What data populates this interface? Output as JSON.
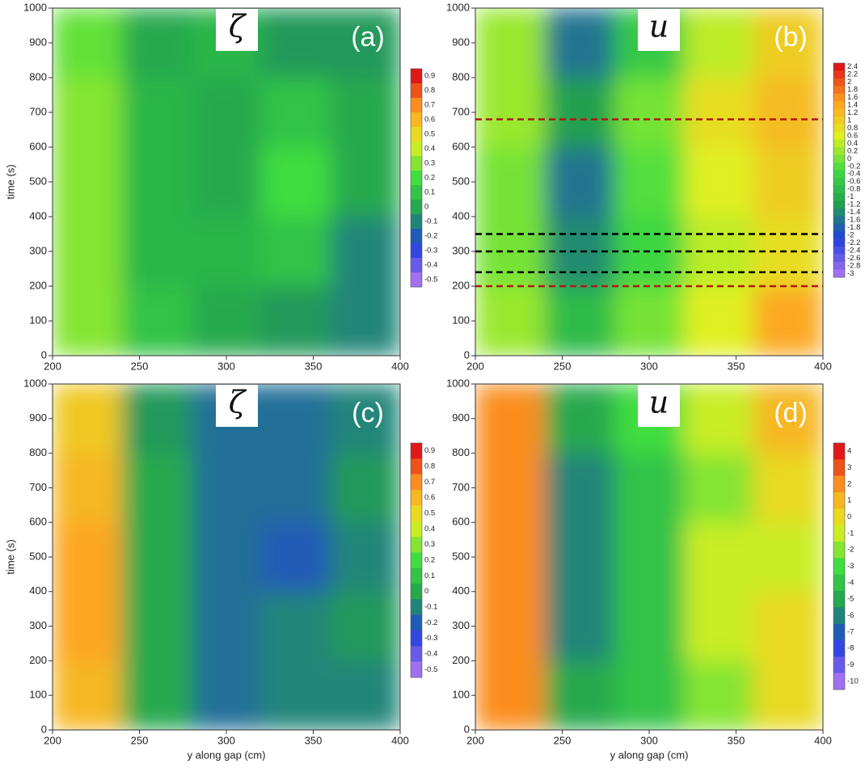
{
  "chart_data": [
    {
      "type": "heatmap",
      "symbol": "ζ",
      "label": "(a)",
      "y_label": "time (s)",
      "x": [
        200,
        240,
        280,
        320,
        360,
        400
      ],
      "y": [
        0,
        200,
        400,
        600,
        800,
        1000
      ],
      "values": [
        [
          0.3,
          0.1,
          0,
          -0.05,
          -0.1
        ],
        [
          0.3,
          0.05,
          0.05,
          0.1,
          -0.1
        ],
        [
          0.3,
          0.05,
          0,
          0.2,
          0
        ],
        [
          0.3,
          0.05,
          0,
          0.1,
          0
        ],
        [
          0.25,
          0,
          0.05,
          -0.05,
          -0.05
        ]
      ],
      "xlim": [
        200,
        400
      ],
      "xticks": [
        200,
        250,
        300,
        350,
        400
      ],
      "ylim": [
        0,
        1000
      ],
      "yticks": [
        0,
        100,
        200,
        300,
        400,
        500,
        600,
        700,
        800,
        900,
        1000
      ],
      "colorbar": [
        0.9,
        0.8,
        0.7,
        0.6,
        0.5,
        0.4,
        0.3,
        0.2,
        0.1,
        0,
        -0.1,
        -0.2,
        -0.3,
        -0.4,
        -0.5
      ],
      "colormap": [
        "#a070f0",
        "#2040e0",
        "#20a050",
        "#40dd40",
        "#e0f020",
        "#ffa020",
        "#e01818"
      ]
    },
    {
      "type": "heatmap",
      "symbol": "u",
      "label": "(b)",
      "x": [
        200,
        240,
        280,
        320,
        360,
        400
      ],
      "y": [
        0,
        200,
        400,
        600,
        800,
        1000
      ],
      "values": [
        [
          0.2,
          -0.8,
          0,
          0.6,
          1.4
        ],
        [
          0,
          -1.4,
          -0.4,
          0.4,
          0.8
        ],
        [
          0,
          -1.6,
          -0.2,
          0.6,
          1
        ],
        [
          0.2,
          -1.2,
          0,
          0.8,
          1.2
        ],
        [
          0.2,
          -1.6,
          -0.6,
          0.4,
          1
        ]
      ],
      "xlim": [
        200,
        400
      ],
      "xticks": [
        200,
        250,
        300,
        350,
        400
      ],
      "ylim": [
        0,
        1000
      ],
      "yticks": [
        0,
        100,
        200,
        300,
        400,
        500,
        600,
        700,
        800,
        900,
        1000
      ],
      "colorbar": [
        2.4,
        2.2,
        2,
        1.8,
        1.6,
        1.4,
        1.2,
        1,
        0.8,
        0.6,
        0.4,
        0.2,
        0,
        -0.2,
        -0.4,
        -0.6,
        -0.8,
        -1,
        -1.2,
        -1.4,
        -1.6,
        -1.8,
        -2,
        -2.2,
        -2.4,
        -2.6,
        -2.8,
        -3
      ],
      "colormap": [
        "#a070f0",
        "#2040e0",
        "#20a050",
        "#40dd40",
        "#e0f020",
        "#ffa020",
        "#e01818"
      ],
      "hlines": [
        {
          "y": 680,
          "color": "#b01818"
        },
        {
          "y": 350,
          "color": "#000000"
        },
        {
          "y": 300,
          "color": "#000000"
        },
        {
          "y": 240,
          "color": "#000000"
        },
        {
          "y": 200,
          "color": "#b01818"
        }
      ]
    },
    {
      "type": "heatmap",
      "symbol": "ζ",
      "label": "(c)",
      "y_label": "time (s)",
      "x_label": "y along gap (cm)",
      "x": [
        200,
        240,
        280,
        320,
        360,
        400
      ],
      "y": [
        0,
        200,
        400,
        600,
        800,
        1000
      ],
      "values": [
        [
          0.6,
          0,
          -0.15,
          -0.1,
          -0.1
        ],
        [
          0.65,
          0,
          -0.15,
          -0.1,
          -0.05
        ],
        [
          0.65,
          0,
          -0.15,
          -0.2,
          -0.1
        ],
        [
          0.6,
          0,
          -0.15,
          -0.15,
          -0.05
        ],
        [
          0.55,
          -0.05,
          -0.15,
          -0.15,
          -0.1
        ]
      ],
      "xlim": [
        200,
        400
      ],
      "xticks": [
        200,
        250,
        300,
        350,
        400
      ],
      "ylim": [
        0,
        1000
      ],
      "yticks": [
        0,
        100,
        200,
        300,
        400,
        500,
        600,
        700,
        800,
        900,
        1000
      ],
      "colorbar": [
        0.9,
        0.8,
        0.7,
        0.6,
        0.5,
        0.4,
        0.3,
        0.2,
        0.1,
        0,
        -0.1,
        -0.2,
        -0.3,
        -0.4,
        -0.5
      ],
      "colormap": [
        "#a070f0",
        "#2040e0",
        "#20a050",
        "#40dd40",
        "#e0f020",
        "#ffa020",
        "#e01818"
      ]
    },
    {
      "type": "heatmap",
      "symbol": "u",
      "label": "(d)",
      "x_label": "y along gap (cm)",
      "x": [
        200,
        240,
        280,
        320,
        360,
        400
      ],
      "y": [
        0,
        200,
        400,
        600,
        800,
        1000
      ],
      "values": [
        [
          2,
          -5,
          -4,
          -2,
          0
        ],
        [
          2,
          -6,
          -4,
          -1,
          0
        ],
        [
          2,
          -6,
          -4,
          -1,
          -1
        ],
        [
          2,
          -6,
          -4,
          -2,
          0
        ],
        [
          2,
          -5,
          -3,
          -1,
          1
        ]
      ],
      "xlim": [
        200,
        400
      ],
      "xticks": [
        200,
        250,
        300,
        350,
        400
      ],
      "ylim": [
        0,
        1000
      ],
      "yticks": [
        0,
        100,
        200,
        300,
        400,
        500,
        600,
        700,
        800,
        900,
        1000
      ],
      "colorbar": [
        4,
        3,
        2,
        1,
        0,
        -1,
        -2,
        -3,
        -4,
        -5,
        -6,
        -7,
        -8,
        -9,
        -10
      ],
      "colormap": [
        "#a070f0",
        "#2040e0",
        "#20a050",
        "#40dd40",
        "#e0f020",
        "#ffa020",
        "#e01818"
      ]
    }
  ]
}
